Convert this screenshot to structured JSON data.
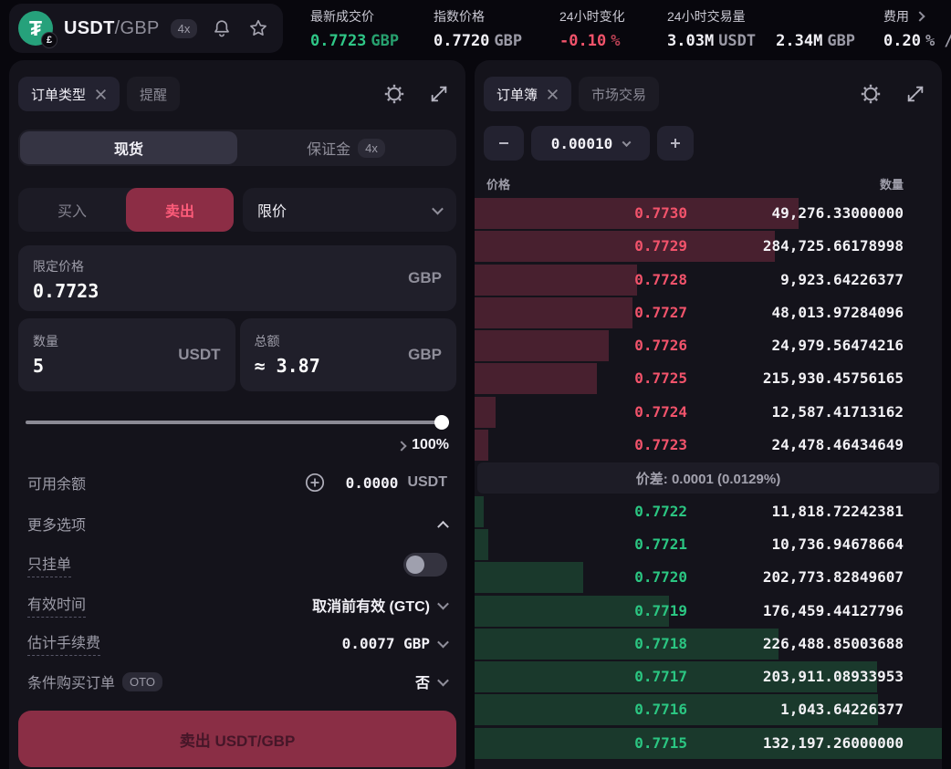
{
  "colors": {
    "green": "#2fc787",
    "red": "#f2536b",
    "ask_bar": "#48202f",
    "bid_bar": "#1a392c",
    "sell_accent": "#8c2d45",
    "panel_bg": "#14131b"
  },
  "header": {
    "logo_glyph": "₮",
    "logo_sub_glyph": "£",
    "pair_base": "USDT",
    "pair_quote": "/GBP",
    "leverage": "4x",
    "stats": [
      {
        "label": "最新成交价",
        "value": "0.7723",
        "unit": "GBP"
      },
      {
        "label": "指数价格",
        "value": "0.7720",
        "unit": "GBP"
      },
      {
        "label": "24小时变化",
        "value": "-0.10",
        "unit": "%"
      },
      {
        "label": "24小时交易量",
        "value": "3.03M",
        "unit": "USDT",
        "value2": "2.34M",
        "unit2": "GBP"
      },
      {
        "label": "费用",
        "value": "0.20",
        "unit": "% /"
      }
    ]
  },
  "order_form": {
    "tab_order_type": "订单类型",
    "tab_alerts": "提醒",
    "market_spot": "现货",
    "market_margin": "保证金",
    "margin_badge": "4x",
    "side_buy": "买入",
    "side_sell": "卖出",
    "order_type_selected": "限价",
    "price_field": {
      "label": "限定价格",
      "value": "0.7723",
      "unit": "GBP"
    },
    "amount_field": {
      "label": "数量",
      "value": "5",
      "unit": "USDT"
    },
    "total_field": {
      "label": "总额",
      "value": "≈ 3.87",
      "unit": "GBP"
    },
    "slider_percent": "100%",
    "balance": {
      "label": "可用余额",
      "value": "0.0000",
      "unit": "USDT"
    },
    "more_options": "更多选项",
    "post_only": "只挂单",
    "time_in_force": {
      "label": "有效时间",
      "value": "取消前有效 (GTC)"
    },
    "est_fee": {
      "label": "估计手续费",
      "value": "0.0077 GBP"
    },
    "oto": {
      "label": "条件购买订单",
      "badge": "OTO",
      "value": "否"
    },
    "submit_label": "卖出 USDT/GBP"
  },
  "orderbook": {
    "tab_book": "订单簿",
    "tab_trades": "市场交易",
    "tick_size": "0.00010",
    "col_price": "价格",
    "col_amount": "数量",
    "spread_text": "价差: 0.0001 (0.0129%)",
    "asks": [
      {
        "price": "0.7730",
        "amount": "49,276.33000000",
        "depth": 69.4
      },
      {
        "price": "0.7729",
        "amount": "284,725.66178998",
        "depth": 64.3
      },
      {
        "price": "0.7728",
        "amount": "9,923.64226377",
        "depth": 34.8
      },
      {
        "price": "0.7727",
        "amount": "48,013.97284096",
        "depth": 33.8
      },
      {
        "price": "0.7726",
        "amount": "24,979.56474216",
        "depth": 28.8
      },
      {
        "price": "0.7725",
        "amount": "215,930.45756165",
        "depth": 26.2
      },
      {
        "price": "0.7724",
        "amount": "12,587.41713162",
        "depth": 4.4
      },
      {
        "price": "0.7723",
        "amount": "24,478.46434649",
        "depth": 2.9
      }
    ],
    "bids": [
      {
        "price": "0.7722",
        "amount": "11,818.72242381",
        "depth": 2.0
      },
      {
        "price": "0.7721",
        "amount": "10,736.94678664",
        "depth": 2.9
      },
      {
        "price": "0.7720",
        "amount": "202,773.82849607",
        "depth": 23.3
      },
      {
        "price": "0.7719",
        "amount": "176,459.44127796",
        "depth": 41.6
      },
      {
        "price": "0.7718",
        "amount": "226,488.85003688",
        "depth": 65.1
      },
      {
        "price": "0.7717",
        "amount": "203,911.08933953",
        "depth": 86.2
      },
      {
        "price": "0.7716",
        "amount": "1,043.64226377",
        "depth": 86.3
      },
      {
        "price": "0.7715",
        "amount": "132,197.26000000",
        "depth": 100
      }
    ]
  }
}
